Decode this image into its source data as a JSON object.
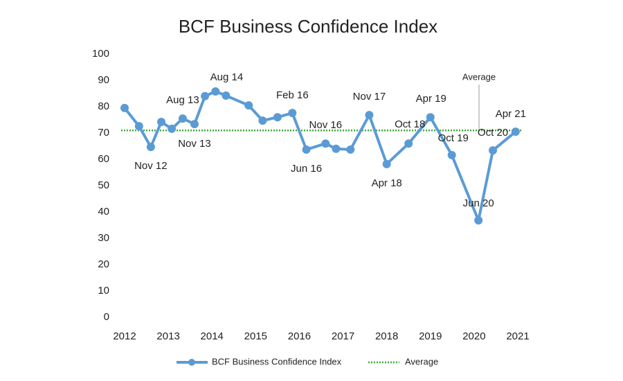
{
  "chart_data": {
    "type": "line",
    "title": "BCF Business Confidence Index",
    "x": [
      2012.0,
      2012.33,
      2012.6,
      2012.84,
      2013.08,
      2013.33,
      2013.6,
      2013.84,
      2014.08,
      2014.32,
      2014.84,
      2015.16,
      2015.5,
      2015.84,
      2016.16,
      2016.6,
      2016.84,
      2017.17,
      2017.6,
      2018.0,
      2018.5,
      2019.0,
      2019.49,
      2020.1,
      2020.43,
      2020.95
    ],
    "series": [
      {
        "name": "BCF Business Confidence Index",
        "color": "#5b9bd5",
        "values": [
          79.5,
          72.6,
          64.7,
          74.2,
          71.6,
          75.5,
          73.4,
          84,
          85.8,
          84.2,
          80.5,
          74.7,
          76,
          77.6,
          63.7,
          66,
          64,
          63.7,
          76.8,
          58.2,
          66,
          76,
          61.6,
          36.8,
          63.4,
          70.5
        ],
        "point_labels": [
          null,
          null,
          "Nov 12",
          null,
          null,
          "Aug 13",
          "Nov 13",
          null,
          null,
          "Aug 14",
          null,
          null,
          null,
          "Feb 16",
          "Jun 16",
          "Nov 16",
          null,
          null,
          "Nov 17",
          "Apr 18",
          "Oct 18",
          "Apr 19",
          "Oct 19",
          "Jun 20",
          "Oct 20",
          "Apr 21"
        ]
      }
    ],
    "average": {
      "name": "Average",
      "value": 71,
      "color": "#3aaa35"
    },
    "xlim": [
      2012,
      2021
    ],
    "xticks": [
      2012,
      2013,
      2014,
      2015,
      2016,
      2017,
      2018,
      2019,
      2020,
      2021
    ],
    "ylim": [
      0,
      100
    ],
    "yticks": [
      0,
      10,
      20,
      30,
      40,
      50,
      60,
      70,
      80,
      90,
      100
    ],
    "grid": false,
    "legend": "bottom"
  }
}
